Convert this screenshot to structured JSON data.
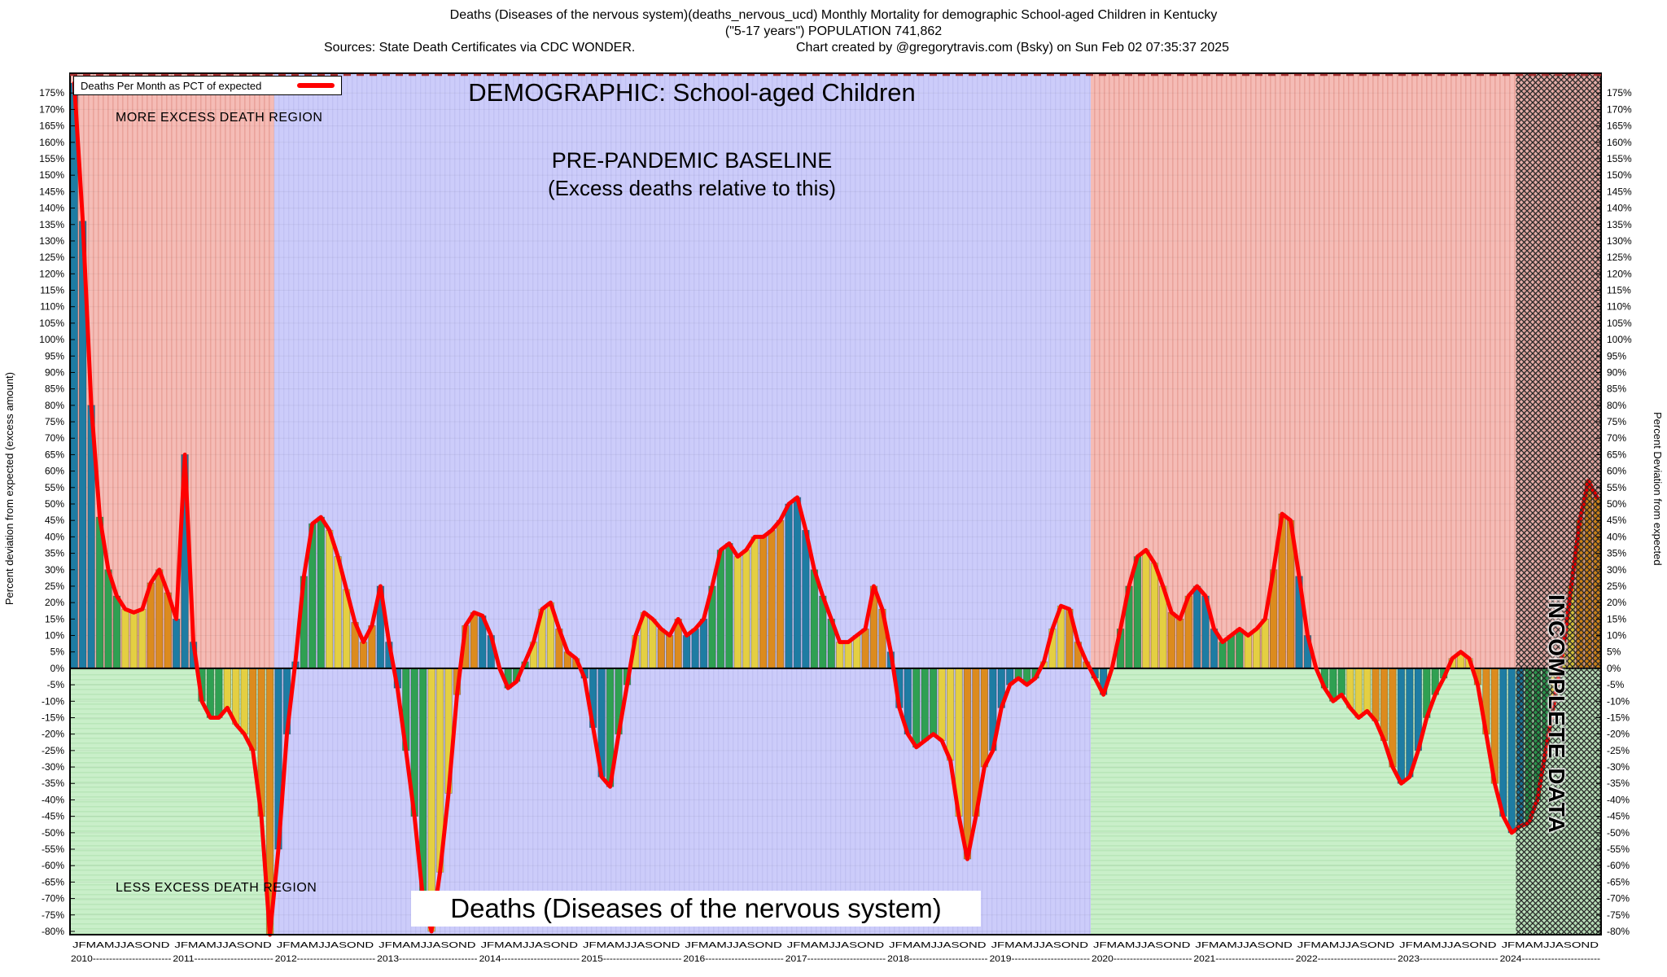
{
  "titles": {
    "line1": "Deaths (Diseases of the nervous system)(deaths_nervous_ucd) Monthly Mortality for demographic School-aged Children in Kentucky",
    "line2": "(\"5-17 years\") POPULATION 741,862",
    "line3_left": "Sources: State Death Certificates via CDC WONDER.",
    "line3_right": "Chart created by @gregorytravis.com (Bsky) on Sun Feb 02 07:35:37 2025"
  },
  "legend": {
    "label": "Deaths Per Month as PCT of expected"
  },
  "annotations": {
    "more_excess": "MORE EXCESS DEATH REGION",
    "less_excess": "LESS EXCESS DEATH REGION",
    "demographic": "DEMOGRAPHIC: School-aged Children",
    "baseline_1": "PRE-PANDEMIC BASELINE",
    "baseline_2": "(Excess deaths relative to this)",
    "bottom_label": "Deaths (Diseases of the nervous system)",
    "incomplete": "INCOMPLETE DATA"
  },
  "axes": {
    "left_label": "Percent deviation from expected (excess amount)",
    "right_label": "Percent Deviation from expected",
    "tick_min": -80,
    "tick_max": 175,
    "tick_step": 5,
    "tick_suffix": "%"
  },
  "chart_data": {
    "type": "bar",
    "title": "Deaths (Diseases of the nervous system) - Monthly Mortality, School-aged Children, Kentucky",
    "ylabel": "Percent deviation from expected",
    "unit": "%",
    "ylim": [
      -81,
      181
    ],
    "month_letters": "JFMAMJJASOND",
    "bar_color_scheme": "quarterly (Q1 teal, Q2 green, Q3 yellow, Q4 orange)",
    "line_series_name": "Deaths Per Month as PCT of expected",
    "years": [
      {
        "year": 2010,
        "values": [
          178,
          136,
          80,
          46,
          30,
          22,
          18,
          17,
          18,
          26,
          30,
          23
        ]
      },
      {
        "year": 2011,
        "values": [
          15,
          65,
          8,
          -10,
          -15,
          -15,
          -12,
          -17,
          -20,
          -25,
          -45,
          -82
        ]
      },
      {
        "year": 2012,
        "values": [
          -55,
          -20,
          2,
          28,
          44,
          46,
          42,
          34,
          24,
          14,
          8,
          13
        ]
      },
      {
        "year": 2013,
        "values": [
          25,
          8,
          -6,
          -25,
          -45,
          -70,
          -80,
          -62,
          -38,
          -8,
          13,
          17
        ]
      },
      {
        "year": 2014,
        "values": [
          16,
          10,
          0,
          -6,
          -4,
          2,
          8,
          18,
          20,
          12,
          5,
          3
        ]
      },
      {
        "year": 2015,
        "values": [
          -3,
          -18,
          -33,
          -36,
          -20,
          -5,
          10,
          17,
          15,
          12,
          10,
          15
        ]
      },
      {
        "year": 2016,
        "values": [
          10,
          12,
          15,
          25,
          36,
          38,
          34,
          36,
          40,
          40,
          42,
          45
        ]
      },
      {
        "year": 2017,
        "values": [
          50,
          52,
          42,
          30,
          22,
          15,
          8,
          8,
          10,
          12,
          25,
          18
        ]
      },
      {
        "year": 2018,
        "values": [
          5,
          -12,
          -20,
          -24,
          -22,
          -20,
          -22,
          -28,
          -45,
          -58,
          -45,
          -30
        ]
      },
      {
        "year": 2019,
        "values": [
          -25,
          -12,
          -5,
          -3,
          -5,
          -3,
          2,
          12,
          19,
          18,
          8,
          2
        ]
      },
      {
        "year": 2020,
        "values": [
          -3,
          -8,
          0,
          12,
          25,
          34,
          36,
          32,
          25,
          17,
          15,
          22
        ]
      },
      {
        "year": 2021,
        "values": [
          25,
          22,
          12,
          8,
          10,
          12,
          10,
          12,
          15,
          30,
          47,
          45
        ]
      },
      {
        "year": 2022,
        "values": [
          28,
          10,
          0,
          -6,
          -10,
          -8,
          -12,
          -15,
          -13,
          -16,
          -22,
          -30
        ]
      },
      {
        "year": 2023,
        "values": [
          -35,
          -33,
          -25,
          -15,
          -8,
          -3,
          3,
          5,
          3,
          -5,
          -20,
          -35
        ]
      },
      {
        "year": 2024,
        "values": [
          -45,
          -50,
          -48,
          -47,
          -40,
          -25,
          -10,
          5,
          25,
          45,
          57,
          52
        ]
      }
    ],
    "regions": {
      "baseline_months": [
        24,
        120
      ],
      "incomplete_start_month": 170
    },
    "colors": {
      "quarter": [
        "#1e7ca3",
        "#2fa052",
        "#e4cf42",
        "#dc8b1e"
      ],
      "line": "#ff0000",
      "more_excess_bg": "#f5bcb6",
      "more_excess_stripe": "#eaa39b",
      "less_excess_bg": "#c9efc9",
      "less_excess_stripe": "#b9e6b9",
      "baseline_bg": "#ccccfa",
      "baseline_stripe": "#c1c1f3",
      "hatch": "#262626",
      "zero_line": "#000000",
      "top_dash": "#a83232"
    }
  }
}
